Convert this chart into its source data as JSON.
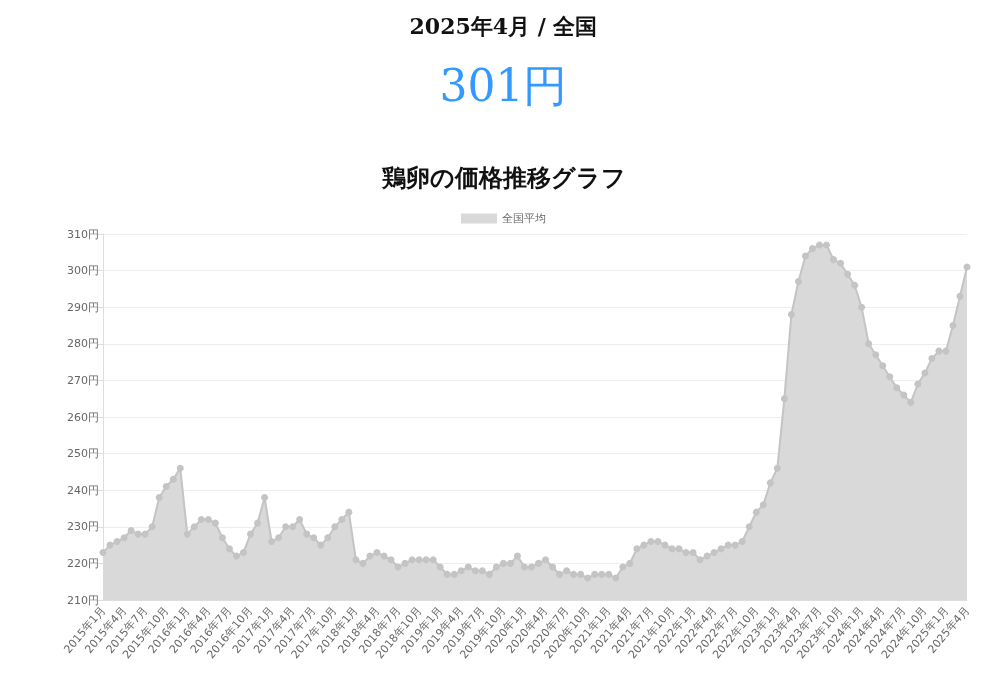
{
  "chart_data": {
    "type": "area",
    "title": "鶏卵の価格推移グラフ",
    "annotations": [
      "2025年4月 / 全国",
      "301円"
    ],
    "categories": [
      "2015年1月",
      null,
      null,
      "2015年4月",
      null,
      null,
      "2015年7月",
      null,
      null,
      "2015年10月",
      null,
      null,
      "2016年1月",
      null,
      null,
      "2016年4月",
      null,
      null,
      "2016年7月",
      null,
      null,
      "2016年10月",
      null,
      null,
      "2017年1月",
      null,
      null,
      "2017年4月",
      null,
      null,
      "2017年7月",
      null,
      null,
      "2017年10月",
      null,
      null,
      "2018年1月",
      null,
      null,
      "2018年4月",
      null,
      null,
      "2018年7月",
      null,
      null,
      "2018年10月",
      null,
      null,
      "2019年1月",
      null,
      null,
      "2019年4月",
      null,
      null,
      "2019年7月",
      null,
      null,
      "2019年10月",
      null,
      null,
      "2020年1月",
      null,
      null,
      "2020年4月",
      null,
      null,
      "2020年7月",
      null,
      null,
      "2020年10月",
      null,
      null,
      "2021年1月",
      null,
      null,
      "2021年4月",
      null,
      null,
      "2021年7月",
      null,
      null,
      "2021年10月",
      null,
      null,
      "2022年1月",
      null,
      null,
      "2022年4月",
      null,
      null,
      "2022年7月",
      null,
      null,
      "2022年10月",
      null,
      null,
      "2023年1月",
      null,
      null,
      "2023年4月",
      null,
      null,
      "2023年7月",
      null,
      null,
      "2023年10月",
      null,
      null,
      "2024年1月",
      null,
      null,
      "2024年4月",
      null,
      null,
      "2024年7月",
      null,
      null,
      "2024年10月",
      null,
      null,
      "2025年1月",
      null,
      null,
      "2025年4月"
    ],
    "series": [
      {
        "name": "全国平均",
        "color": "#d9d9d9",
        "values": [
          223,
          225,
          226,
          227,
          229,
          228,
          228,
          230,
          238,
          241,
          243,
          246,
          228,
          230,
          232,
          232,
          231,
          227,
          224,
          222,
          223,
          228,
          231,
          238,
          226,
          227,
          230,
          230,
          232,
          228,
          227,
          225,
          227,
          230,
          232,
          234,
          221,
          220,
          222,
          223,
          222,
          221,
          219,
          220,
          221,
          221,
          221,
          221,
          219,
          217,
          217,
          218,
          219,
          218,
          218,
          217,
          219,
          220,
          220,
          222,
          219,
          219,
          220,
          221,
          219,
          217,
          218,
          217,
          217,
          216,
          217,
          217,
          217,
          216,
          219,
          220,
          224,
          225,
          226,
          226,
          225,
          224,
          224,
          223,
          223,
          221,
          222,
          223,
          224,
          225,
          225,
          226,
          230,
          234,
          236,
          242,
          246,
          265,
          288,
          297,
          304,
          306,
          307,
          307,
          303,
          302,
          299,
          296,
          290,
          280,
          277,
          274,
          271,
          268,
          266,
          264,
          269,
          272,
          276,
          278,
          278,
          285,
          293,
          301
        ]
      }
    ],
    "ylim": [
      210,
      310
    ],
    "yticks": [
      {
        "value": 210,
        "label": "210円"
      },
      {
        "value": 220,
        "label": "220円"
      },
      {
        "value": 230,
        "label": "230円"
      },
      {
        "value": 240,
        "label": "240円"
      },
      {
        "value": 250,
        "label": "250円"
      },
      {
        "value": 260,
        "label": "260円"
      },
      {
        "value": 270,
        "label": "270円"
      },
      {
        "value": 280,
        "label": "280円"
      },
      {
        "value": 290,
        "label": "290円"
      },
      {
        "value": 300,
        "label": "300円"
      },
      {
        "value": 310,
        "label": "310円"
      }
    ],
    "grid": "y",
    "legend": "top",
    "marker": "circle",
    "line_style": "solid"
  }
}
